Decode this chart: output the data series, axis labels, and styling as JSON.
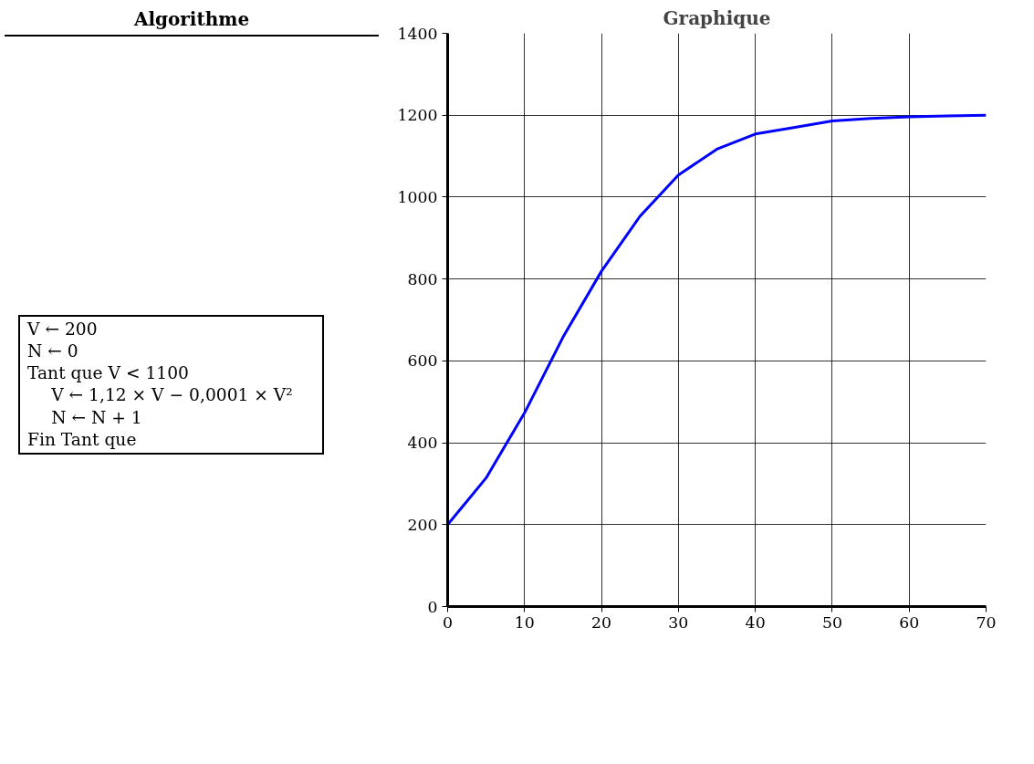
{
  "chart_data": {
    "type": "line",
    "title": "Graphique",
    "annotations": [
      "Algorithme",
      "V ← 200",
      "N ← 0",
      "Tant que V < 1100",
      "V ← 1,12 × V − 0,0001 × V²",
      "N ← N + 1",
      "Fin Tant que"
    ],
    "series": [
      {
        "color": "#0000ff",
        "x": [
          0,
          5,
          10,
          15,
          20,
          25,
          30,
          35,
          40,
          45,
          50,
          55,
          60,
          65,
          70
        ],
        "values": [
          200,
          314,
          473,
          658,
          819,
          953,
          1054,
          1117,
          1154,
          1170,
          1186,
          1192,
          1196,
          1198,
          1200
        ]
      }
    ],
    "xlim": [
      0,
      70
    ],
    "ylim": [
      0,
      1400
    ],
    "xticks": [
      0,
      10,
      20,
      30,
      40,
      50,
      60,
      70
    ],
    "yticks": [
      0,
      200,
      400,
      600,
      800,
      1000,
      1200,
      1400
    ],
    "grid": true
  }
}
